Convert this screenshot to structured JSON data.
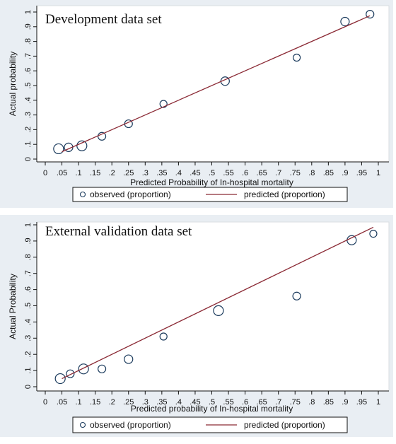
{
  "chart_data": [
    {
      "type": "scatter",
      "title": "Development data set",
      "xlabel": "Predicted Probability of In-hospital mortality",
      "ylabel": "Actual probability",
      "xlim": [
        0,
        1
      ],
      "ylim": [
        0,
        1
      ],
      "x_ticks": [
        "0",
        ".05",
        ".1",
        ".15",
        ".2",
        ".25",
        ".3",
        ".35",
        ".4",
        ".45",
        ".5",
        ".55",
        ".6",
        ".65",
        ".7",
        ".75",
        ".8",
        ".85",
        ".9",
        ".95",
        "1"
      ],
      "y_ticks": [
        "0",
        ".1",
        ".2",
        ".3",
        ".4",
        ".5",
        ".6",
        ".7",
        ".8",
        ".9",
        "1"
      ],
      "series": [
        {
          "name": "observed (proportion)",
          "kind": "markers",
          "color": "#1a3a5c",
          "points": [
            {
              "x": 0.04,
              "y": 0.07,
              "size": 7
            },
            {
              "x": 0.07,
              "y": 0.08,
              "size": 6
            },
            {
              "x": 0.11,
              "y": 0.09,
              "size": 7
            },
            {
              "x": 0.17,
              "y": 0.155,
              "size": 5.5
            },
            {
              "x": 0.25,
              "y": 0.24,
              "size": 5.5
            },
            {
              "x": 0.355,
              "y": 0.375,
              "size": 5
            },
            {
              "x": 0.54,
              "y": 0.53,
              "size": 6
            },
            {
              "x": 0.755,
              "y": 0.69,
              "size": 5
            },
            {
              "x": 0.9,
              "y": 0.935,
              "size": 6
            },
            {
              "x": 0.975,
              "y": 0.985,
              "size": 5.5
            }
          ]
        },
        {
          "name": "predicted (proportion)",
          "kind": "line",
          "color": "#8b2a35",
          "points": [
            {
              "x": 0.05,
              "y": 0.05
            },
            {
              "x": 0.975,
              "y": 0.975
            }
          ]
        }
      ],
      "legend": {
        "position": "bottom",
        "items": [
          "observed (proportion)",
          "predicted (proportion)"
        ]
      },
      "grid": false
    },
    {
      "type": "scatter",
      "title": "External validation data set",
      "xlabel": "Predicted probability of In-hospital mortality",
      "ylabel": "Actual Probability",
      "xlim": [
        0,
        1
      ],
      "ylim": [
        0,
        1
      ],
      "x_ticks": [
        "0",
        ".05",
        ".1",
        ".15",
        ".2",
        ".25",
        ".3",
        ".35",
        ".4",
        ".45",
        ".5",
        ".55",
        ".6",
        ".65",
        ".7",
        ".75",
        ".8",
        ".85",
        ".9",
        ".95",
        "1"
      ],
      "y_ticks": [
        "0",
        ".1",
        ".2",
        ".3",
        ".4",
        ".5",
        ".6",
        ".7",
        ".8",
        ".9",
        "1"
      ],
      "series": [
        {
          "name": "observed (proportion)",
          "kind": "markers",
          "color": "#1a3a5c",
          "points": [
            {
              "x": 0.045,
              "y": 0.05,
              "size": 7
            },
            {
              "x": 0.075,
              "y": 0.08,
              "size": 5.5
            },
            {
              "x": 0.115,
              "y": 0.11,
              "size": 7
            },
            {
              "x": 0.17,
              "y": 0.11,
              "size": 5.5
            },
            {
              "x": 0.25,
              "y": 0.17,
              "size": 6
            },
            {
              "x": 0.355,
              "y": 0.31,
              "size": 5
            },
            {
              "x": 0.52,
              "y": 0.47,
              "size": 7
            },
            {
              "x": 0.755,
              "y": 0.56,
              "size": 5.5
            },
            {
              "x": 0.92,
              "y": 0.905,
              "size": 6.5
            },
            {
              "x": 0.985,
              "y": 0.945,
              "size": 5
            }
          ]
        },
        {
          "name": "predicted (proportion)",
          "kind": "line",
          "color": "#8b2a35",
          "points": [
            {
              "x": 0.05,
              "y": 0.05
            },
            {
              "x": 0.985,
              "y": 0.985
            }
          ]
        }
      ],
      "legend": {
        "position": "bottom",
        "items": [
          "observed (proportion)",
          "predicted (proportion)"
        ]
      },
      "grid": false
    }
  ]
}
